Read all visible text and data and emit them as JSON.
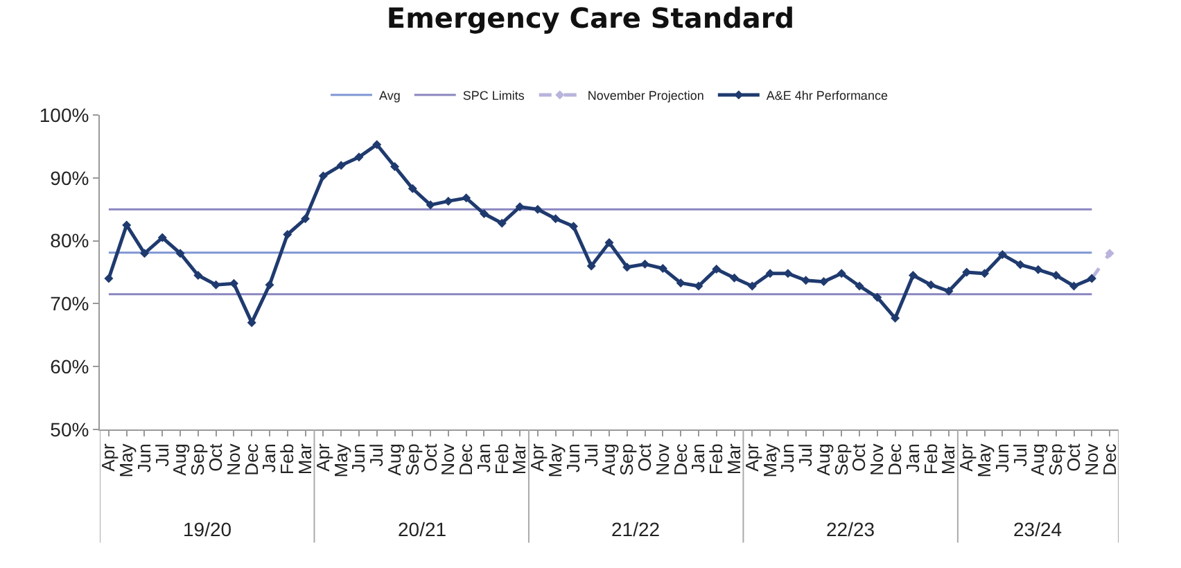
{
  "chart_data": {
    "type": "line",
    "title": "Emergency Care Standard",
    "categories": [
      "Apr",
      "May",
      "Jun",
      "Jul",
      "Aug",
      "Sep",
      "Oct",
      "Nov",
      "Dec",
      "Jan",
      "Feb",
      "Mar",
      "Apr",
      "May",
      "Jun",
      "Jul",
      "Aug",
      "Sep",
      "Oct",
      "Nov",
      "Dec",
      "Jan",
      "Feb",
      "Mar",
      "Apr",
      "May",
      "Jun",
      "Jul",
      "Aug",
      "Sep",
      "Oct",
      "Nov",
      "Dec",
      "Jan",
      "Feb",
      "Mar",
      "Apr",
      "May",
      "Jun",
      "Jul",
      "Aug",
      "Sep",
      "Oct",
      "Nov",
      "Dec",
      "Jan",
      "Feb",
      "Mar",
      "Apr",
      "May",
      "Jun",
      "Jul",
      "Aug",
      "Sep",
      "Oct",
      "Nov",
      "Dec"
    ],
    "series": [
      {
        "name": "Avg",
        "color": "#7f96d4",
        "marker": "none",
        "values": [
          78.1,
          78.1,
          78.1,
          78.1,
          78.1,
          78.1,
          78.1,
          78.1,
          78.1,
          78.1,
          78.1,
          78.1,
          78.1,
          78.1,
          78.1,
          78.1,
          78.1,
          78.1,
          78.1,
          78.1,
          78.1,
          78.1,
          78.1,
          78.1,
          78.1,
          78.1,
          78.1,
          78.1,
          78.1,
          78.1,
          78.1,
          78.1,
          78.1,
          78.1,
          78.1,
          78.1,
          78.1,
          78.1,
          78.1,
          78.1,
          78.1,
          78.1,
          78.1,
          78.1,
          78.1,
          78.1,
          78.1,
          78.1,
          78.1,
          78.1,
          78.1,
          78.1,
          78.1,
          78.1,
          78.1,
          78.1,
          null
        ]
      },
      {
        "name": "SPC Limits",
        "color": "#8a86c0",
        "marker": "none",
        "values": [
          85,
          85,
          85,
          85,
          85,
          85,
          85,
          85,
          85,
          85,
          85,
          85,
          85,
          85,
          85,
          85,
          85,
          85,
          85,
          85,
          85,
          85,
          85,
          85,
          85,
          85,
          85,
          85,
          85,
          85,
          85,
          85,
          85,
          85,
          85,
          85,
          85,
          85,
          85,
          85,
          85,
          85,
          85,
          85,
          85,
          85,
          85,
          85,
          85,
          85,
          85,
          85,
          85,
          85,
          85,
          85,
          null
        ]
      },
      {
        "color": "#8a86c0",
        "marker": "none",
        "values": [
          71.5,
          71.5,
          71.5,
          71.5,
          71.5,
          71.5,
          71.5,
          71.5,
          71.5,
          71.5,
          71.5,
          71.5,
          71.5,
          71.5,
          71.5,
          71.5,
          71.5,
          71.5,
          71.5,
          71.5,
          71.5,
          71.5,
          71.5,
          71.5,
          71.5,
          71.5,
          71.5,
          71.5,
          71.5,
          71.5,
          71.5,
          71.5,
          71.5,
          71.5,
          71.5,
          71.5,
          71.5,
          71.5,
          71.5,
          71.5,
          71.5,
          71.5,
          71.5,
          71.5,
          71.5,
          71.5,
          71.5,
          71.5,
          71.5,
          71.5,
          71.5,
          71.5,
          71.5,
          71.5,
          71.5,
          71.5,
          null
        ]
      },
      {
        "name": "November Projection",
        "color": "#b8b4dc",
        "marker": "diamond",
        "line_style": "dashed",
        "values": [
          null,
          null,
          null,
          null,
          null,
          null,
          null,
          null,
          null,
          null,
          null,
          null,
          null,
          null,
          null,
          null,
          null,
          null,
          null,
          null,
          null,
          null,
          null,
          null,
          null,
          null,
          null,
          null,
          null,
          null,
          null,
          null,
          null,
          null,
          null,
          null,
          null,
          null,
          null,
          null,
          null,
          null,
          null,
          null,
          null,
          null,
          null,
          null,
          null,
          null,
          null,
          null,
          null,
          null,
          null,
          74,
          78
        ]
      },
      {
        "name": "A&E 4hr Performance",
        "color": "#1f3a6e",
        "marker": "diamond",
        "values": [
          74,
          82.5,
          78,
          80.5,
          78,
          74.5,
          73,
          73.2,
          67,
          73,
          81,
          83.5,
          90.3,
          92,
          93.3,
          95.3,
          91.8,
          88.3,
          85.7,
          86.3,
          86.8,
          84.3,
          82.8,
          85.4,
          85,
          83.5,
          82.3,
          76,
          79.7,
          75.8,
          76.3,
          75.6,
          73.3,
          72.8,
          75.5,
          74.1,
          72.8,
          74.8,
          74.8,
          73.7,
          73.5,
          74.8,
          72.8,
          71,
          67.7,
          74.5,
          73,
          72,
          75,
          74.8,
          77.8,
          76.2,
          75.4,
          74.5,
          72.8,
          74,
          null
        ]
      }
    ],
    "ylim": [
      50,
      100
    ],
    "yticks": [
      {
        "value": 50,
        "label": "50%"
      },
      {
        "value": 60,
        "label": "60%"
      },
      {
        "value": 70,
        "label": "70%"
      },
      {
        "value": 80,
        "label": "80%"
      },
      {
        "value": 90,
        "label": "90%"
      },
      {
        "value": 100,
        "label": "100%"
      }
    ],
    "annotations": [
      "19/20",
      "20/21",
      "21/22",
      "22/23",
      "23/24"
    ],
    "grid": false,
    "legend": "top"
  }
}
